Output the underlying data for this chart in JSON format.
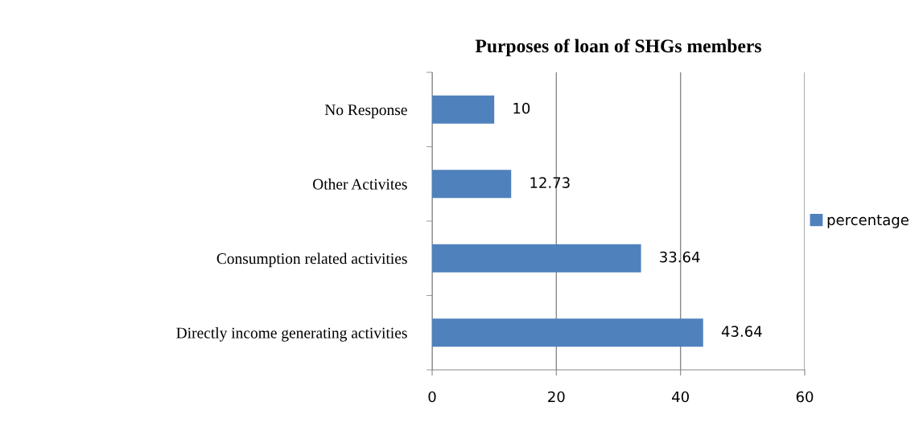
{
  "chart_data": {
    "type": "bar",
    "orientation": "horizontal",
    "title": "Purposes of loan of SHGs members",
    "categories": [
      "No Response",
      "Other Activites",
      "Consumption related activities",
      "Directly income generating activities"
    ],
    "series": [
      {
        "name": "percentage",
        "color": "#4f81bd",
        "values": [
          10,
          12.73,
          33.64,
          43.64
        ]
      }
    ],
    "xlim": [
      0,
      60
    ],
    "xticks": [
      0,
      20,
      40,
      60
    ],
    "grid": "x",
    "legend": "right",
    "data_labels": true
  }
}
